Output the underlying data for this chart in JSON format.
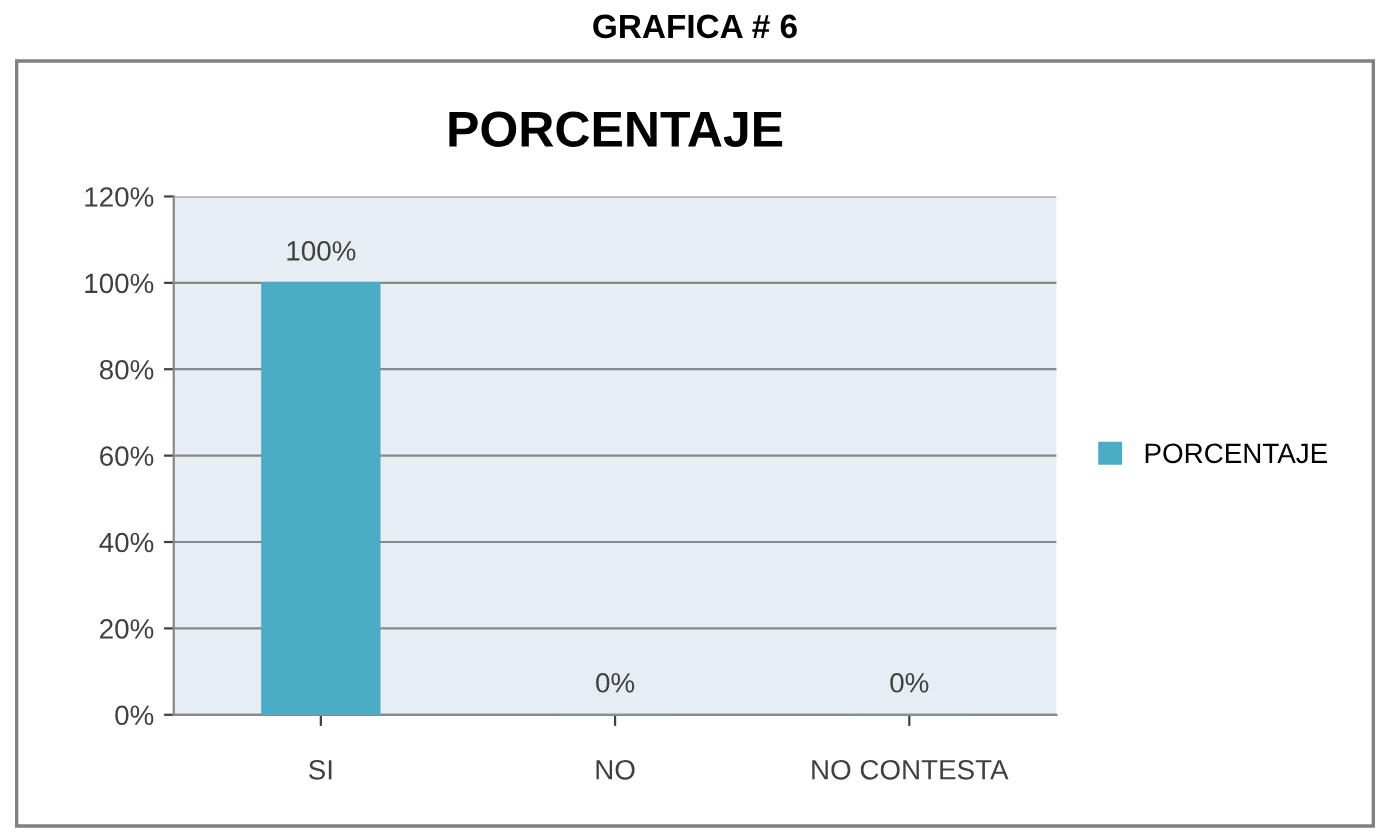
{
  "chart_data": {
    "type": "bar",
    "title": "PORCENTAJE",
    "annotations": [
      "GRAFICA # 6"
    ],
    "categories": [
      "SI",
      "NO",
      "NO CONTESTA"
    ],
    "series": [
      {
        "name": "PORCENTAJE",
        "color": "#4bacc6",
        "values": [
          100,
          0,
          0
        ],
        "value_labels": [
          "100%",
          "0%",
          "0%"
        ]
      }
    ],
    "ylim": [
      0,
      120
    ],
    "yticks": [
      {
        "value": 0,
        "label": "0%"
      },
      {
        "value": 20,
        "label": "20%"
      },
      {
        "value": 40,
        "label": "40%"
      },
      {
        "value": 60,
        "label": "60%"
      },
      {
        "value": 80,
        "label": "80%"
      },
      {
        "value": 100,
        "label": "100%"
      },
      {
        "value": 120,
        "label": "120%"
      }
    ],
    "grid": "y",
    "legend": "right"
  }
}
